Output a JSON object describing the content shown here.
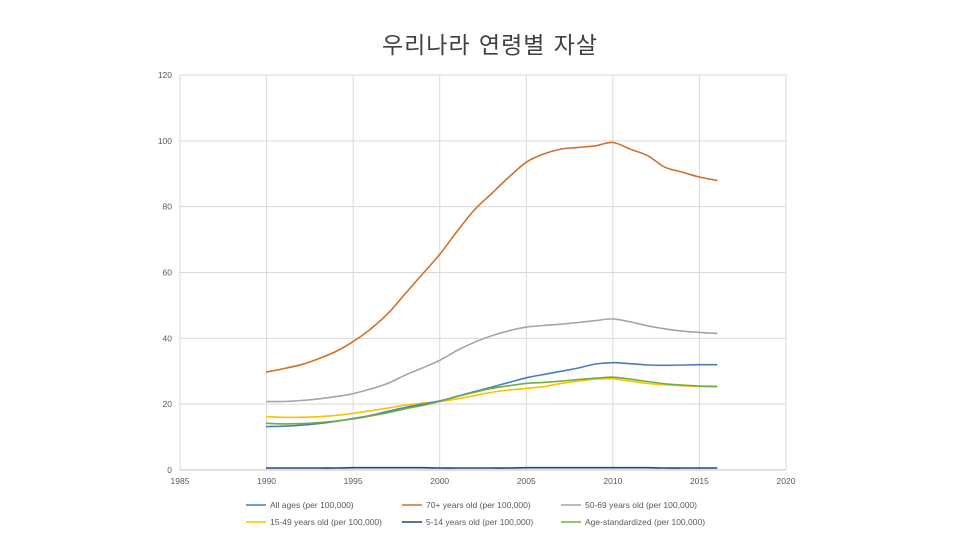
{
  "chart_data": {
    "type": "line",
    "title": "우리나라 연령별 자살",
    "xlabel": "",
    "ylabel": "",
    "xlim": [
      1985,
      2020
    ],
    "ylim": [
      0,
      120
    ],
    "xticks": [
      1985,
      1990,
      1995,
      2000,
      2005,
      2010,
      2015,
      2020
    ],
    "yticks": [
      0,
      20,
      40,
      60,
      80,
      100,
      120
    ],
    "grid": true,
    "legend_position": "bottom",
    "x": [
      1990,
      1991,
      1992,
      1993,
      1994,
      1995,
      1996,
      1997,
      1998,
      1999,
      2000,
      2001,
      2002,
      2003,
      2004,
      2005,
      2006,
      2007,
      2008,
      2009,
      2010,
      2011,
      2012,
      2013,
      2014,
      2015,
      2016
    ],
    "series": [
      {
        "name": "All ages (per 100,000)",
        "color": "#4a7ebb",
        "values": [
          13.2,
          13.3,
          13.6,
          14.1,
          14.8,
          15.6,
          16.6,
          17.8,
          19.0,
          20.0,
          21.0,
          22.4,
          23.8,
          25.2,
          26.6,
          28.0,
          29.0,
          30.0,
          31.0,
          32.2,
          32.6,
          32.3,
          31.9,
          31.8,
          31.9,
          32.0,
          32.0
        ]
      },
      {
        "name": "70+ years old (per 100,000)",
        "color": "#d0712a",
        "values": [
          29.8,
          30.8,
          32.0,
          33.8,
          36.0,
          39.0,
          42.8,
          47.5,
          53.5,
          59.5,
          65.5,
          72.5,
          79.0,
          84.0,
          89.0,
          93.5,
          96.0,
          97.5,
          98.0,
          98.5,
          99.5,
          97.5,
          95.5,
          92.0,
          90.5,
          89.0,
          88.0
        ]
      },
      {
        "name": "50-69 years old (per 100,000)",
        "color": "#a5a5a5",
        "values": [
          20.8,
          20.8,
          21.1,
          21.6,
          22.3,
          23.2,
          24.6,
          26.3,
          28.8,
          31.0,
          33.3,
          36.3,
          38.8,
          40.8,
          42.3,
          43.4,
          43.9,
          44.3,
          44.8,
          45.4,
          45.9,
          45.0,
          43.8,
          42.9,
          42.2,
          41.8,
          41.5
        ]
      },
      {
        "name": "15-49 years old (per 100,000)",
        "color": "#ffc000",
        "values": [
          16.2,
          16.0,
          16.0,
          16.2,
          16.6,
          17.2,
          18.0,
          18.8,
          19.7,
          20.3,
          20.8,
          21.6,
          22.6,
          23.6,
          24.3,
          24.8,
          25.3,
          26.3,
          27.0,
          27.6,
          27.7,
          27.0,
          26.3,
          25.9,
          25.6,
          25.4,
          25.3
        ]
      },
      {
        "name": "5-14 years old (per 100,000)",
        "color": "#264478",
        "values": [
          0.6,
          0.6,
          0.6,
          0.6,
          0.6,
          0.7,
          0.7,
          0.7,
          0.7,
          0.7,
          0.6,
          0.6,
          0.6,
          0.6,
          0.6,
          0.7,
          0.7,
          0.7,
          0.7,
          0.7,
          0.7,
          0.7,
          0.7,
          0.6,
          0.6,
          0.6,
          0.6
        ]
      },
      {
        "name": "Age-standardized (per 100,000)",
        "color": "#70ad47",
        "values": [
          14.2,
          14.0,
          14.1,
          14.4,
          14.9,
          15.5,
          16.4,
          17.4,
          18.6,
          19.6,
          20.8,
          22.3,
          23.6,
          24.8,
          25.6,
          26.3,
          26.6,
          27.0,
          27.5,
          27.9,
          28.2,
          27.6,
          26.9,
          26.2,
          25.8,
          25.5,
          25.4
        ]
      }
    ]
  }
}
